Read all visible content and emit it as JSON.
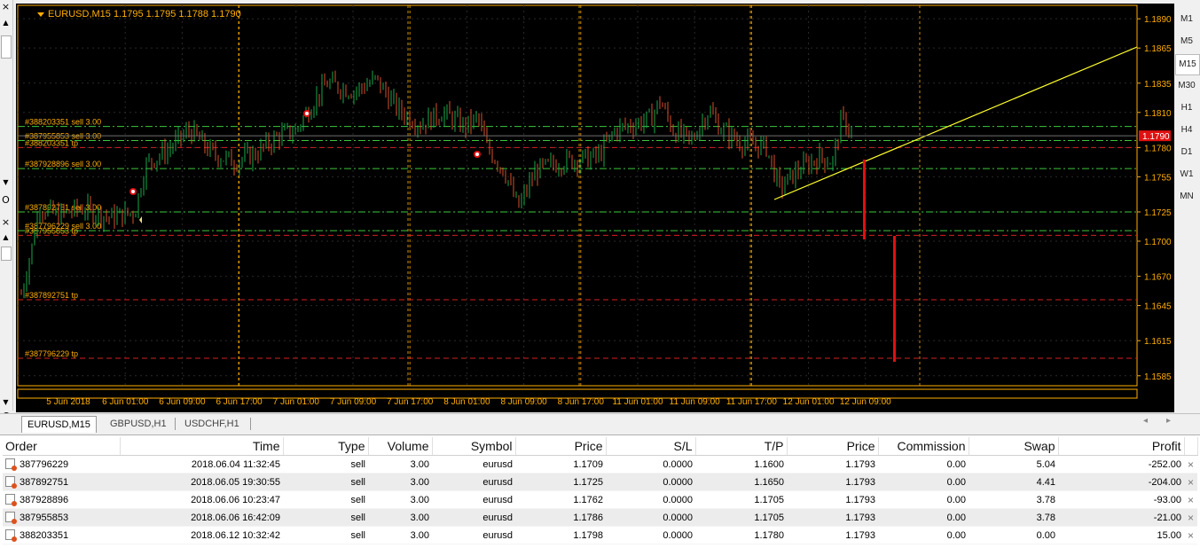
{
  "chart": {
    "title": "EURUSD,M15  1.1795 1.1795 1.1788 1.1790",
    "current_price": "1.1790",
    "colors": {
      "background": "#000000",
      "axis": "#ffae00",
      "bull": "#19a84a",
      "bear": "#d8502a",
      "green_line": "#3cc83c",
      "red_line": "#d42020",
      "trend": "#ffff2c",
      "grid": "#ffae00"
    },
    "price_ticks": [
      "1.1890",
      "1.1865",
      "1.1835",
      "1.1810",
      "1.1780",
      "1.1755",
      "1.1725",
      "1.1700",
      "1.1670",
      "1.1645",
      "1.1615",
      "1.1585"
    ],
    "time_ticks": [
      "5 Jun 2018",
      "6 Jun 01:00",
      "6 Jun 09:00",
      "6 Jun 17:00",
      "7 Jun 01:00",
      "7 Jun 09:00",
      "7 Jun 17:00",
      "8 Jun 01:00",
      "8 Jun 09:00",
      "8 Jun 17:00",
      "11 Jun 01:00",
      "11 Jun 09:00",
      "11 Jun 17:00",
      "12 Jun 01:00",
      "12 Jun 09:00"
    ],
    "order_lines": [
      {
        "label": "#388203351 sell 3.00",
        "price": 1.1798,
        "kind": "entry"
      },
      {
        "label": "#387955853 sell 3.00",
        "price": 1.1786,
        "kind": "entry"
      },
      {
        "label": "#388203351 tp",
        "price": 1.178,
        "kind": "tp"
      },
      {
        "label": "#387928896 sell 3.00",
        "price": 1.1762,
        "kind": "entry"
      },
      {
        "label": "#387892751 sell 3.00",
        "price": 1.1725,
        "kind": "entry"
      },
      {
        "label": "#387796229 sell 3.00",
        "price": 1.1709,
        "kind": "entry"
      },
      {
        "label": "#387955853 tp",
        "price": 1.1705,
        "kind": "tp"
      },
      {
        "label": "#387892751 tp",
        "price": 1.165,
        "kind": "tp"
      },
      {
        "label": "#387796229 tp",
        "price": 1.16,
        "kind": "tp"
      }
    ]
  },
  "timeframes": [
    "M1",
    "M5",
    "M15",
    "M30",
    "H1",
    "H4",
    "D1",
    "W1",
    "MN"
  ],
  "active_timeframe": "M15",
  "chart_tabs": [
    "EURUSD,M15",
    "GBPUSD,H1",
    "USDCHF,H1"
  ],
  "left_strip": {
    "close": "×",
    "letter_o": "O",
    "letter_c": "C"
  },
  "orders": {
    "columns": [
      "Order",
      "Time",
      "Type",
      "Volume",
      "Symbol",
      "Price",
      "S/L",
      "T/P",
      "Price",
      "Commission",
      "Swap",
      "Profit"
    ],
    "rows": [
      [
        "387796229",
        "2018.06.04 11:32:45",
        "sell",
        "3.00",
        "eurusd",
        "1.1709",
        "0.0000",
        "1.1600",
        "1.1793",
        "0.00",
        "5.04",
        "-252.00"
      ],
      [
        "387892751",
        "2018.06.05 19:30:55",
        "sell",
        "3.00",
        "eurusd",
        "1.1725",
        "0.0000",
        "1.1650",
        "1.1793",
        "0.00",
        "4.41",
        "-204.00"
      ],
      [
        "387928896",
        "2018.06.06 10:23:47",
        "sell",
        "3.00",
        "eurusd",
        "1.1762",
        "0.0000",
        "1.1705",
        "1.1793",
        "0.00",
        "3.78",
        "-93.00"
      ],
      [
        "387955853",
        "2018.06.06 16:42:09",
        "sell",
        "3.00",
        "eurusd",
        "1.1786",
        "0.0000",
        "1.1705",
        "1.1793",
        "0.00",
        "3.78",
        "-21.00"
      ],
      [
        "388203351",
        "2018.06.12 10:32:42",
        "sell",
        "3.00",
        "eurusd",
        "1.1798",
        "0.0000",
        "1.1780",
        "1.1793",
        "0.00",
        "0.00",
        "15.00"
      ]
    ],
    "close_glyph": "×"
  }
}
